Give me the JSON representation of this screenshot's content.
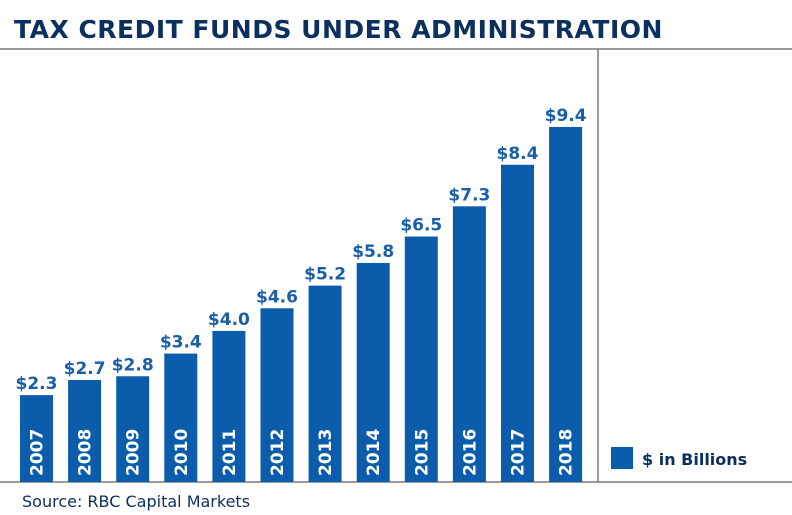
{
  "chart_data": {
    "type": "bar",
    "title": "TAX CREDIT FUNDS UNDER ADMINISTRATION",
    "categories": [
      "2007",
      "2008",
      "2009",
      "2010",
      "2011",
      "2012",
      "2013",
      "2014",
      "2015",
      "2016",
      "2017",
      "2018"
    ],
    "values": [
      2.3,
      2.7,
      2.8,
      3.4,
      4.0,
      4.6,
      5.2,
      5.8,
      6.5,
      7.3,
      8.4,
      9.4
    ],
    "value_labels": [
      "$2.3",
      "$2.7",
      "$2.8",
      "$3.4",
      "$4.0",
      "$4.6",
      "$5.2",
      "$5.8",
      "$6.5",
      "$7.3",
      "$8.4",
      "$9.4"
    ],
    "legend": "$ in Billions",
    "legend_position": "bottom-right",
    "source": "Source: RBC Capital Markets",
    "grid": false,
    "colors": {
      "bar": "#0b5cab",
      "title": "#0b2f5e",
      "value_label": "#1a5ea8"
    }
  }
}
